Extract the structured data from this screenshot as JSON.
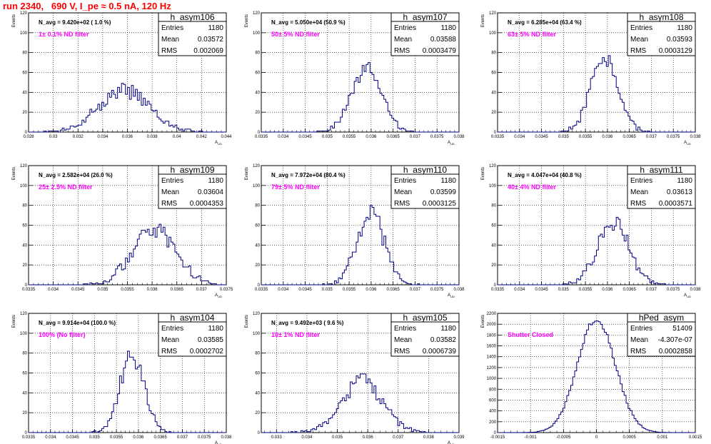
{
  "page": {
    "title": "run 2340,   690 V, I_pe ≈ 0.5 nA, 120 Hz"
  },
  "colors": {
    "title": "#ff0000",
    "annotation": "#ff00ff",
    "histogram": "#000080",
    "grid": "#000000"
  },
  "chart_data": [
    {
      "type": "histogram",
      "name": "h_asym106",
      "ylabel": "Events",
      "xlabel": "A_UD",
      "xlim": [
        0.028,
        0.044
      ],
      "ylim": [
        0,
        120
      ],
      "xticks": [
        "0.028",
        "0.03",
        "0.032",
        "0.034",
        "0.036",
        "0.038",
        "0.04",
        "0.042",
        "0.044"
      ],
      "yticks": [
        "0",
        "20",
        "40",
        "60",
        "80",
        "100",
        "120"
      ],
      "n_avg_label": "N_avg = 9.420e+02 ( 1.0 %)",
      "filter_label": "1± 0.1% ND filter",
      "stats": {
        "entries_label": "Entries",
        "entries": "1180",
        "mean_label": "Mean",
        "mean": "0.03572",
        "rms_label": "RMS",
        "rms": "0.002069"
      },
      "gauss": {
        "mean": 0.03572,
        "sigma": 0.002069,
        "peak": 42
      }
    },
    {
      "type": "histogram",
      "name": "h_asym107",
      "ylabel": "Events",
      "xlabel": "A_UD",
      "xlim": [
        0.0335,
        0.038
      ],
      "ylim": [
        0,
        120
      ],
      "xticks": [
        "0.0335",
        "0.034",
        "0.0345",
        "0.035",
        "0.0355",
        "0.036",
        "0.0365",
        "0.037",
        "0.0375",
        "0.038"
      ],
      "yticks": [
        "0",
        "20",
        "40",
        "60",
        "80",
        "100",
        "120"
      ],
      "n_avg_label": "N_avg = 5.050e+04 (50.9 %)",
      "filter_label": "50± 5% ND filter",
      "stats": {
        "entries_label": "Entries",
        "entries": "1180",
        "mean_label": "Mean",
        "mean": "0.03588",
        "rms_label": "RMS",
        "rms": "0.0003479"
      },
      "gauss": {
        "mean": 0.03588,
        "sigma": 0.0003479,
        "peak": 63
      }
    },
    {
      "type": "histogram",
      "name": "h_asym108",
      "ylabel": "Events",
      "xlabel": "A_UD",
      "xlim": [
        0.0335,
        0.038
      ],
      "ylim": [
        0,
        120
      ],
      "xticks": [
        "0.0335",
        "0.034",
        "0.0345",
        "0.035",
        "0.0355",
        "0.036",
        "0.0365",
        "0.037",
        "0.0375",
        "0.038"
      ],
      "yticks": [
        "0",
        "20",
        "40",
        "60",
        "80",
        "100",
        "120"
      ],
      "n_avg_label": "N_avg = 6.285e+04 (63.4 %)",
      "filter_label": "63± 5% ND filter",
      "stats": {
        "entries_label": "Entries",
        "entries": "1180",
        "mean_label": "Mean",
        "mean": "0.03593",
        "rms_label": "RMS",
        "rms": "0.0003129"
      },
      "gauss": {
        "mean": 0.03593,
        "sigma": 0.0003129,
        "peak": 72
      }
    },
    {
      "type": "histogram",
      "name": "h_asym109",
      "ylabel": "Events",
      "xlabel": "A_UD",
      "xlim": [
        0.0335,
        0.0375
      ],
      "ylim": [
        0,
        120
      ],
      "xticks": [
        "0.0335",
        "0.034",
        "0.0345",
        "0.035",
        "0.0355",
        "0.036",
        "0.0365",
        "0.037",
        "0.0375"
      ],
      "yticks": [
        "0",
        "20",
        "40",
        "60",
        "80",
        "100",
        "120"
      ],
      "n_avg_label": "N_avg = 2.582e+04 (26.0 %)",
      "filter_label": "25± 2.5% ND filter",
      "stats": {
        "entries_label": "Entries",
        "entries": "1180",
        "mean_label": "Mean",
        "mean": "0.03604",
        "rms_label": "RMS",
        "rms": "0.0004353"
      },
      "gauss": {
        "mean": 0.03604,
        "sigma": 0.0004353,
        "peak": 56
      }
    },
    {
      "type": "histogram",
      "name": "h_asym110",
      "ylabel": "Events",
      "xlabel": "A_UD",
      "xlim": [
        0.0335,
        0.038
      ],
      "ylim": [
        0,
        120
      ],
      "xticks": [
        "0.0335",
        "0.034",
        "0.0345",
        "0.035",
        "0.0355",
        "0.036",
        "0.0365",
        "0.037",
        "0.0375",
        "0.038"
      ],
      "yticks": [
        "0",
        "20",
        "40",
        "60",
        "80",
        "100",
        "120"
      ],
      "n_avg_label": "N_avg = 7.972e+04 (80.4 %)",
      "filter_label": "79± 5% ND filter",
      "stats": {
        "entries_label": "Entries",
        "entries": "1180",
        "mean_label": "Mean",
        "mean": "0.03599",
        "rms_label": "RMS",
        "rms": "0.0003125"
      },
      "gauss": {
        "mean": 0.03599,
        "sigma": 0.0003125,
        "peak": 72
      }
    },
    {
      "type": "histogram",
      "name": "h_asym111",
      "ylabel": "Events",
      "xlabel": "A_UD",
      "xlim": [
        0.0335,
        0.038
      ],
      "ylim": [
        0,
        120
      ],
      "xticks": [
        "0.0335",
        "0.034",
        "0.0345",
        "0.035",
        "0.0355",
        "0.036",
        "0.0365",
        "0.037",
        "0.0375",
        "0.038"
      ],
      "yticks": [
        "0",
        "20",
        "40",
        "60",
        "80",
        "100",
        "120"
      ],
      "n_avg_label": "N_avg = 4.047e+04 (40.8 %)",
      "filter_label": "40± 4% ND filter",
      "stats": {
        "entries_label": "Entries",
        "entries": "1180",
        "mean_label": "Mean",
        "mean": "0.03613",
        "rms_label": "RMS",
        "rms": "0.0003571"
      },
      "gauss": {
        "mean": 0.03613,
        "sigma": 0.0003571,
        "peak": 64
      }
    },
    {
      "type": "histogram",
      "name": "h_asym104",
      "ylabel": "Events",
      "xlabel": "A_UD",
      "xlim": [
        0.0335,
        0.038
      ],
      "ylim": [
        0,
        120
      ],
      "xticks": [
        "0.0335",
        "0.034",
        "0.0345",
        "0.035",
        "0.0355",
        "0.036",
        "0.0365",
        "0.037",
        "0.0375",
        "0.038"
      ],
      "yticks": [
        "0",
        "20",
        "40",
        "60",
        "80",
        "100",
        "120"
      ],
      "n_avg_label": "N_avg = 9.914e+04 (100.0 %)",
      "filter_label": "100% (No filter)",
      "stats": {
        "entries_label": "Entries",
        "entries": "1180",
        "mean_label": "Mean",
        "mean": "0.03585",
        "rms_label": "RMS",
        "rms": "0.0002702"
      },
      "gauss": {
        "mean": 0.03585,
        "sigma": 0.0002702,
        "peak": 80
      }
    },
    {
      "type": "histogram",
      "name": "h_asym105",
      "ylabel": "Events",
      "xlabel": "A_UD",
      "xlim": [
        0.0325,
        0.039
      ],
      "ylim": [
        0,
        120
      ],
      "xticks": [
        "0.033",
        "0.034",
        "0.035",
        "0.036",
        "0.037",
        "0.038",
        "0.039"
      ],
      "xtick_values": [
        0.033,
        0.034,
        0.035,
        0.036,
        0.037,
        0.038,
        0.039
      ],
      "yticks": [
        "0",
        "20",
        "40",
        "60",
        "80",
        "100",
        "120"
      ],
      "n_avg_label": "N_avg = 9.492e+03 ( 9.6 %)",
      "filter_label": "10± 1% ND filter",
      "stats": {
        "entries_label": "Entries",
        "entries": "1180",
        "mean_label": "Mean",
        "mean": "0.03582",
        "rms_label": "RMS",
        "rms": "0.0006739"
      },
      "gauss": {
        "mean": 0.03582,
        "sigma": 0.0006739,
        "peak": 52
      }
    },
    {
      "type": "histogram",
      "name": "hPed_asym",
      "ylabel": "Events",
      "xlabel": "",
      "xlim": [
        -0.0015,
        0.0015
      ],
      "ylim": [
        0,
        2200
      ],
      "xticks": [
        "-0.0015",
        "-0.001",
        "-0.0005",
        "0",
        "0.0005",
        "0.001",
        "0.0015"
      ],
      "yticks": [
        "0",
        "200",
        "400",
        "600",
        "800",
        "1000",
        "1200",
        "1400",
        "1600",
        "1800",
        "2000",
        "2200"
      ],
      "n_avg_label": "",
      "filter_label": "Shutter Closed",
      "stats": {
        "entries_label": "Entries",
        "entries": "51409",
        "mean_label": "Mean",
        "mean": "-4.307e-07",
        "rms_label": "RMS",
        "rms": "0.0002858"
      },
      "gauss": {
        "mean": -4e-07,
        "sigma": 0.0002858,
        "peak": 2100
      }
    }
  ]
}
